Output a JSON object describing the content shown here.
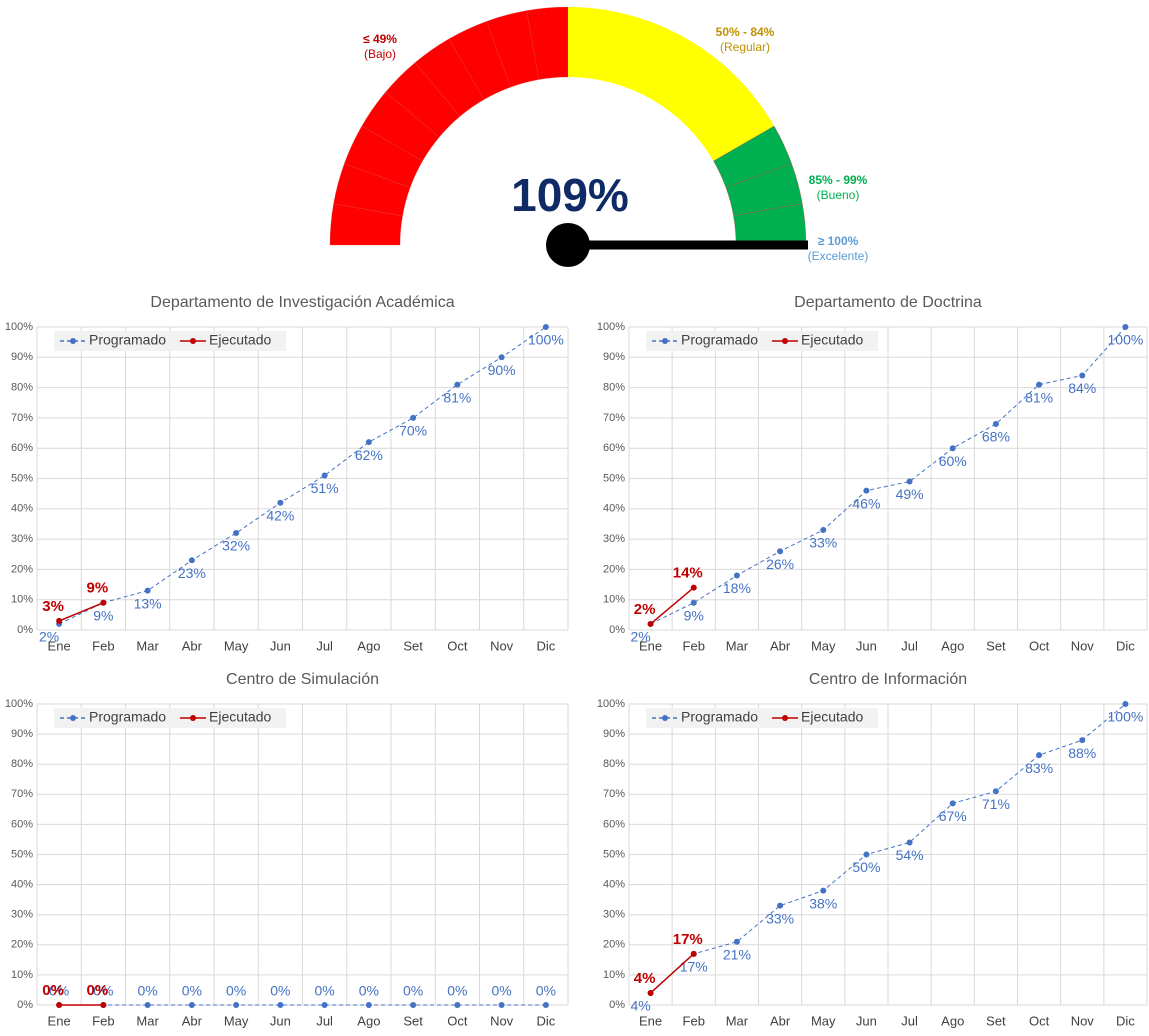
{
  "chart_data": [
    {
      "type": "gauge",
      "value": 109,
      "value_label": "109%",
      "bands": [
        {
          "label": "≤ 49%",
          "name": "(Bajo)",
          "color": "#ff0000",
          "label_color": "#c00000"
        },
        {
          "label": "50% - 84%",
          "name": "(Regular)",
          "color": "#ffff00",
          "label_color": "#bf9000"
        },
        {
          "label": "85% - 99%",
          "name": "(Bueno)",
          "color": "#00b050",
          "label_color": "#00b050"
        },
        {
          "label": "≥ 100%",
          "name": "(Excelente)",
          "color": "#5b9bd5",
          "label_color": "#5b9bd5"
        }
      ]
    },
    {
      "type": "line",
      "title": "Departamento de Investigación Académica",
      "categories": [
        "Ene",
        "Feb",
        "Mar",
        "Abr",
        "May",
        "Jun",
        "Jul",
        "Ago",
        "Set",
        "Oct",
        "Nov",
        "Dic"
      ],
      "series": [
        {
          "name": "Programado",
          "color": "#4472c4",
          "values": [
            2,
            9,
            13,
            23,
            32,
            42,
            51,
            62,
            70,
            81,
            90,
            100
          ],
          "value_labels": [
            "2%",
            "9%",
            "13%",
            "23%",
            "32%",
            "42%",
            "51%",
            "62%",
            "70%",
            "81%",
            "90%",
            "100%"
          ]
        },
        {
          "name": "Ejecutado",
          "color": "#c00000",
          "values": [
            3,
            9,
            null,
            null,
            null,
            null,
            null,
            null,
            null,
            null,
            null,
            null
          ],
          "value_labels": [
            "3%",
            "9%",
            null,
            null,
            null,
            null,
            null,
            null,
            null,
            null,
            null,
            null
          ]
        }
      ],
      "ylim": [
        0,
        100
      ],
      "yticks": [
        {
          "value": 0,
          "label": "0%"
        },
        {
          "value": 10,
          "label": "10%"
        },
        {
          "value": 20,
          "label": "20%"
        },
        {
          "value": 30,
          "label": "30%"
        },
        {
          "value": 40,
          "label": "40%"
        },
        {
          "value": 50,
          "label": "50%"
        },
        {
          "value": 60,
          "label": "60%"
        },
        {
          "value": 70,
          "label": "70%"
        },
        {
          "value": 80,
          "label": "80%"
        },
        {
          "value": 90,
          "label": "90%"
        },
        {
          "value": 100,
          "label": "100%"
        }
      ],
      "grid": true,
      "legend": "upper left"
    },
    {
      "type": "line",
      "title": "Departamento de Doctrina",
      "categories": [
        "Ene",
        "Feb",
        "Mar",
        "Abr",
        "May",
        "Jun",
        "Jul",
        "Ago",
        "Set",
        "Oct",
        "Nov",
        "Dic"
      ],
      "series": [
        {
          "name": "Programado",
          "color": "#4472c4",
          "values": [
            2,
            9,
            18,
            26,
            33,
            46,
            49,
            60,
            68,
            81,
            84,
            100
          ],
          "value_labels": [
            "2%",
            "9%",
            "18%",
            "26%",
            "33%",
            "46%",
            "49%",
            "60%",
            "68%",
            "81%",
            "84%",
            "100%"
          ]
        },
        {
          "name": "Ejecutado",
          "color": "#c00000",
          "values": [
            2,
            14,
            null,
            null,
            null,
            null,
            null,
            null,
            null,
            null,
            null,
            null
          ],
          "value_labels": [
            "2%",
            "14%",
            null,
            null,
            null,
            null,
            null,
            null,
            null,
            null,
            null,
            null
          ]
        }
      ],
      "ylim": [
        0,
        100
      ],
      "yticks": [
        {
          "value": 0,
          "label": "0%"
        },
        {
          "value": 10,
          "label": "10%"
        },
        {
          "value": 20,
          "label": "20%"
        },
        {
          "value": 30,
          "label": "30%"
        },
        {
          "value": 40,
          "label": "40%"
        },
        {
          "value": 50,
          "label": "50%"
        },
        {
          "value": 60,
          "label": "60%"
        },
        {
          "value": 70,
          "label": "70%"
        },
        {
          "value": 80,
          "label": "80%"
        },
        {
          "value": 90,
          "label": "90%"
        },
        {
          "value": 100,
          "label": "100%"
        }
      ],
      "grid": true,
      "legend": "upper left"
    },
    {
      "type": "line",
      "title": "Centro de Simulación",
      "categories": [
        "Ene",
        "Feb",
        "Mar",
        "Abr",
        "May",
        "Jun",
        "Jul",
        "Ago",
        "Set",
        "Oct",
        "Nov",
        "Dic"
      ],
      "series": [
        {
          "name": "Programado",
          "color": "#4472c4",
          "values": [
            0,
            0,
            0,
            0,
            0,
            0,
            0,
            0,
            0,
            0,
            0,
            0
          ],
          "value_labels": [
            "0%",
            "0%",
            "0%",
            "0%",
            "0%",
            "0%",
            "0%",
            "0%",
            "0%",
            "0%",
            "0%",
            "0%"
          ]
        },
        {
          "name": "Ejecutado",
          "color": "#c00000",
          "values": [
            0,
            0,
            null,
            null,
            null,
            null,
            null,
            null,
            null,
            null,
            null,
            null
          ],
          "value_labels": [
            "0%",
            "0%",
            null,
            null,
            null,
            null,
            null,
            null,
            null,
            null,
            null,
            null
          ]
        }
      ],
      "ylim": [
        0,
        100
      ],
      "yticks": [
        {
          "value": 0,
          "label": "0%"
        },
        {
          "value": 10,
          "label": "10%"
        },
        {
          "value": 20,
          "label": "20%"
        },
        {
          "value": 30,
          "label": "30%"
        },
        {
          "value": 40,
          "label": "40%"
        },
        {
          "value": 50,
          "label": "50%"
        },
        {
          "value": 60,
          "label": "60%"
        },
        {
          "value": 70,
          "label": "70%"
        },
        {
          "value": 80,
          "label": "80%"
        },
        {
          "value": 90,
          "label": "90%"
        },
        {
          "value": 100,
          "label": "100%"
        }
      ],
      "grid": true,
      "legend": "upper left"
    },
    {
      "type": "line",
      "title": "Centro de Información",
      "categories": [
        "Ene",
        "Feb",
        "Mar",
        "Abr",
        "May",
        "Jun",
        "Jul",
        "Ago",
        "Set",
        "Oct",
        "Nov",
        "Dic"
      ],
      "series": [
        {
          "name": "Programado",
          "color": "#4472c4",
          "values": [
            4,
            17,
            21,
            33,
            38,
            50,
            54,
            67,
            71,
            83,
            88,
            100
          ],
          "value_labels": [
            "4%",
            "17%",
            "21%",
            "33%",
            "38%",
            "50%",
            "54%",
            "67%",
            "71%",
            "83%",
            "88%",
            "100%"
          ]
        },
        {
          "name": "Ejecutado",
          "color": "#c00000",
          "values": [
            4,
            17,
            null,
            null,
            null,
            null,
            null,
            null,
            null,
            null,
            null,
            null
          ],
          "value_labels": [
            "4%",
            "17%",
            null,
            null,
            null,
            null,
            null,
            null,
            null,
            null,
            null,
            null
          ]
        }
      ],
      "ylim": [
        0,
        100
      ],
      "yticks": [
        {
          "value": 0,
          "label": "0%"
        },
        {
          "value": 10,
          "label": "10%"
        },
        {
          "value": 20,
          "label": "20%"
        },
        {
          "value": 30,
          "label": "30%"
        },
        {
          "value": 40,
          "label": "40%"
        },
        {
          "value": 50,
          "label": "50%"
        },
        {
          "value": 60,
          "label": "60%"
        },
        {
          "value": 70,
          "label": "70%"
        },
        {
          "value": 80,
          "label": "80%"
        },
        {
          "value": 90,
          "label": "90%"
        },
        {
          "value": 100,
          "label": "100%"
        }
      ],
      "grid": true,
      "legend": "upper left"
    }
  ]
}
